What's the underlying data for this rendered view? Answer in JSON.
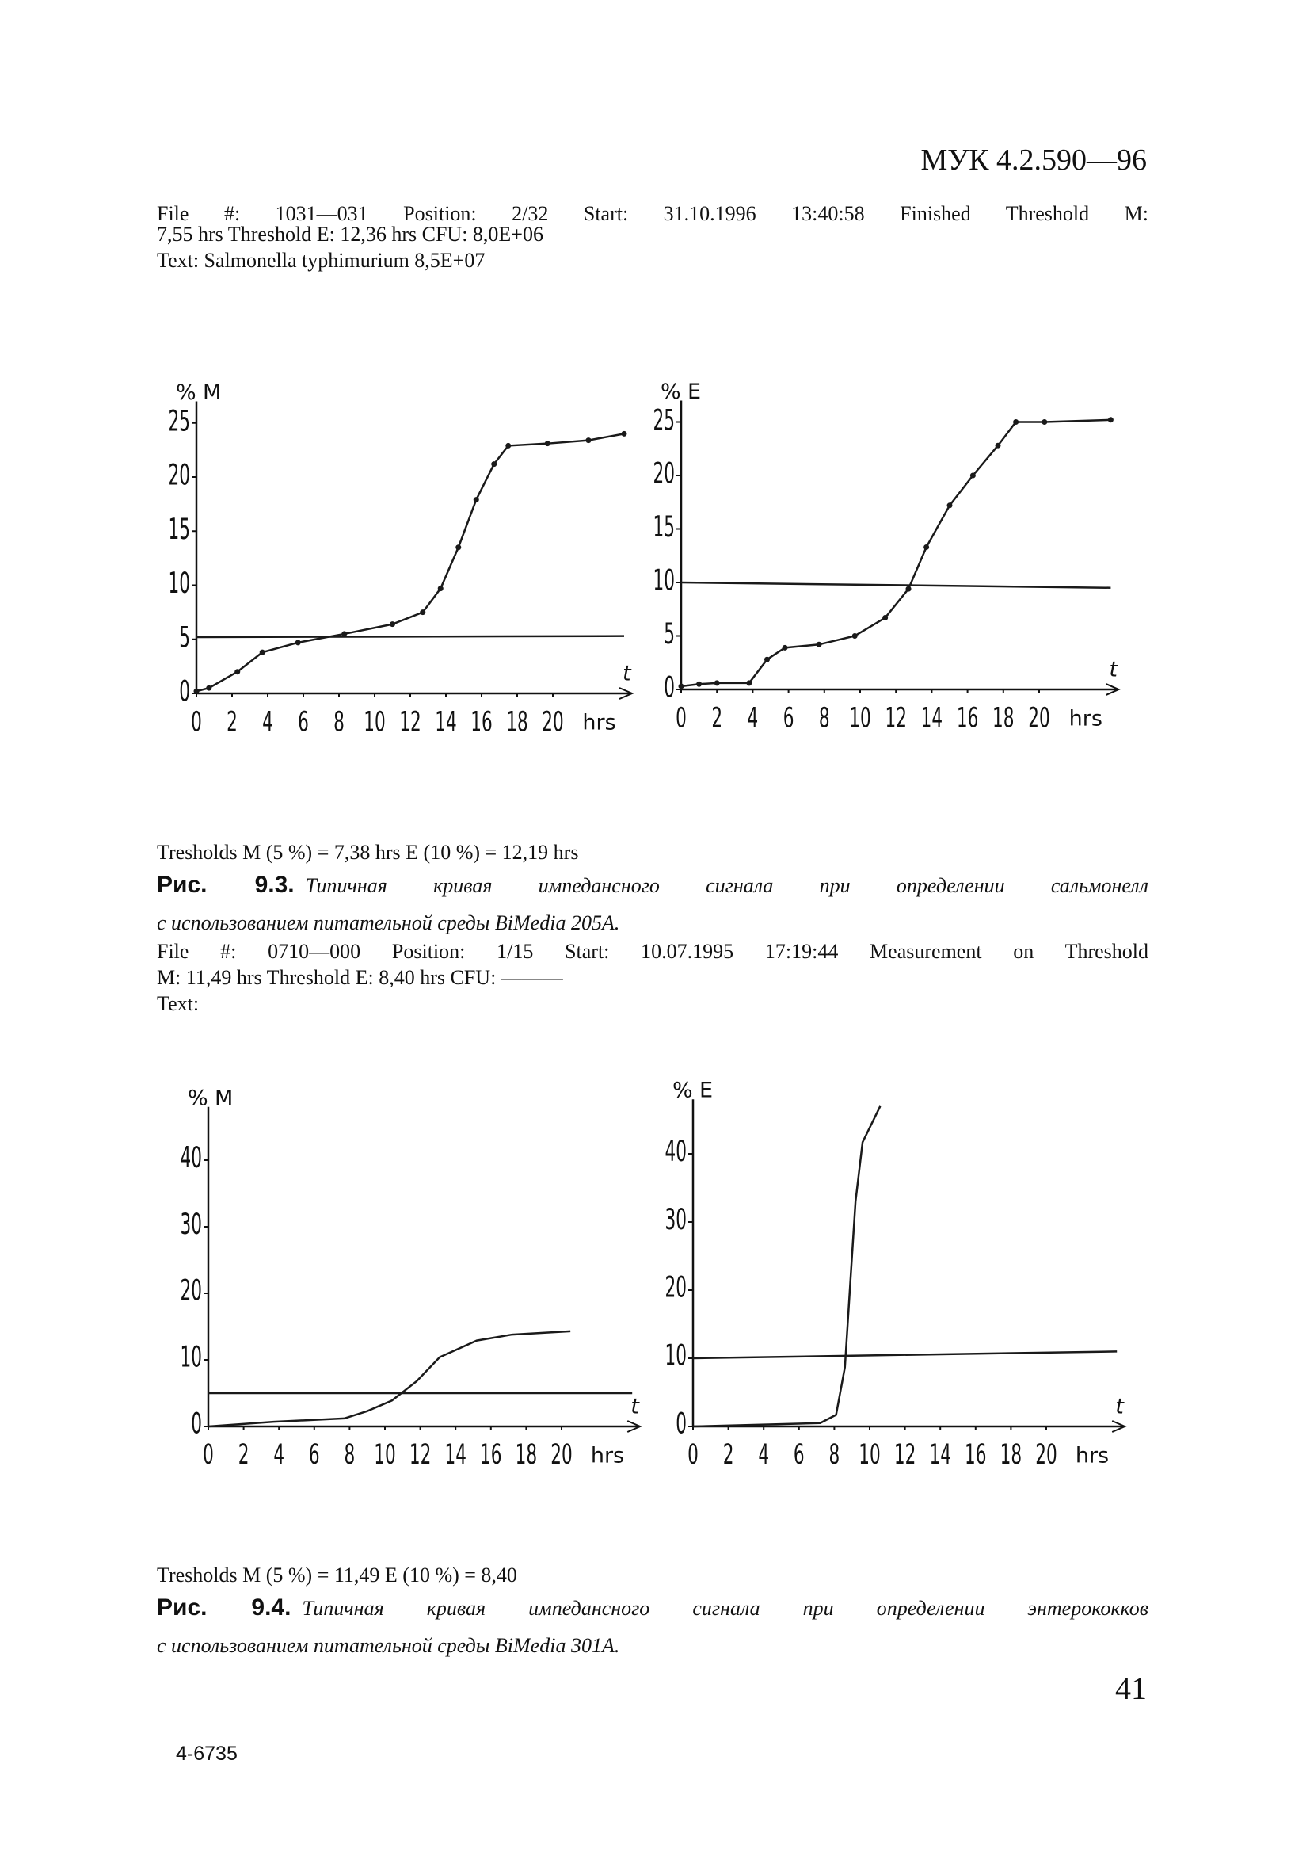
{
  "header": {
    "code": "МУК 4.2.590—96"
  },
  "fig1": {
    "file_lines": [
      "File #: 1031—031 Position: 2/32 Start: 31.10.1996 13:40:58 Finished Threshold M:",
      "7,55 hrs Threshold E: 12,36 hrs CFU: 8,0E+06",
      "Text: Salmonella typhimurium 8,5E+07"
    ],
    "thresholds": "Tresholds M (5 %) = 7,38 hrs E (10 %) = 12,19 hrs",
    "caption_label": "Рис. 9.3.",
    "caption_lines": [
      "Типичная кривая импедансного сигнала при определении сальмонелл",
      "с использованием питательной среды BiMedia 205A."
    ]
  },
  "fig2": {
    "file_lines": [
      "File #: 0710—000 Position: 1/15 Start: 10.07.1995 17:19:44 Measurement on Threshold",
      "M: 11,49 hrs Threshold E: 8,40 hrs CFU: ———",
      "Text:"
    ],
    "thresholds": "Tresholds M (5 %) = 11,49 E (10 %) = 8,40",
    "caption_label": "Рис. 9.4.",
    "caption_lines": [
      "Типичная кривая импедансного сигнала при определении энтерококков",
      "с использованием питательной среды BiMedia 301A."
    ]
  },
  "footer": {
    "page_number": "41",
    "print_code": "4-6735"
  },
  "chart_data": [
    {
      "type": "line",
      "y_label": "%",
      "axis_name": "M",
      "x_label": "hrs",
      "x_arrow_label": "t",
      "xlim": [
        0,
        24
      ],
      "xticks": [
        0,
        2,
        4,
        6,
        8,
        10,
        12,
        14,
        16,
        18,
        20
      ],
      "ylim": [
        0,
        27
      ],
      "yticks": [
        0,
        5,
        10,
        15,
        20,
        25
      ],
      "markers": true,
      "series": [
        {
          "color": "#1a1a1a",
          "x": [
            0,
            0.7,
            2.3,
            3.7,
            5.7,
            8.3,
            11,
            12.7,
            13.7,
            14.7,
            15.7,
            16.7,
            17.5,
            19.7,
            22,
            24
          ],
          "values": [
            0.2,
            0.5,
            2,
            3.8,
            4.7,
            5.5,
            6.4,
            7.5,
            9.7,
            13.5,
            17.9,
            21.2,
            22.9,
            23.1,
            23.4,
            24
          ]
        },
        {
          "color": "#1a1a1a",
          "x": [
            0,
            24
          ],
          "values": [
            5.2,
            5.3
          ]
        }
      ]
    },
    {
      "type": "line",
      "y_label": "%",
      "axis_name": "E",
      "x_label": "hrs",
      "x_arrow_label": "t",
      "xlim": [
        0,
        24
      ],
      "xticks": [
        0,
        2,
        4,
        6,
        8,
        10,
        12,
        14,
        16,
        18,
        20
      ],
      "ylim": [
        0,
        27
      ],
      "yticks": [
        0,
        5,
        10,
        15,
        20,
        25
      ],
      "markers": true,
      "series": [
        {
          "color": "#1a1a1a",
          "x": [
            0,
            1,
            2,
            3.8,
            4.8,
            5.8,
            7.7,
            9.7,
            11.4,
            12.7,
            13.7,
            15,
            16.3,
            17.7,
            18.7,
            20.3,
            24
          ],
          "values": [
            0.3,
            0.5,
            0.6,
            0.6,
            2.8,
            3.9,
            4.2,
            5,
            6.7,
            9.4,
            13.3,
            17.2,
            20,
            22.8,
            25,
            25,
            25.2
          ]
        },
        {
          "color": "#1a1a1a",
          "x": [
            0,
            24
          ],
          "values": [
            10,
            9.5
          ]
        }
      ]
    },
    {
      "type": "line",
      "y_label": "%",
      "axis_name": "M",
      "x_label": "hrs",
      "x_arrow_label": "t",
      "xlim": [
        0,
        24
      ],
      "xticks": [
        0,
        2,
        4,
        6,
        8,
        10,
        12,
        14,
        16,
        18,
        20
      ],
      "ylim": [
        0,
        48
      ],
      "yticks": [
        0,
        10,
        20,
        30,
        40
      ],
      "markers": false,
      "series": [
        {
          "color": "#1a1a1a",
          "x": [
            0,
            3.7,
            7.7,
            9,
            10.4,
            11.8,
            13.1,
            15.2,
            17.2,
            20.5
          ],
          "values": [
            0,
            0.7,
            1.2,
            2.3,
            3.9,
            6.8,
            10.4,
            12.9,
            13.8,
            14.3
          ]
        },
        {
          "color": "#1a1a1a",
          "x": [
            0,
            24
          ],
          "values": [
            5,
            5
          ]
        }
      ]
    },
    {
      "type": "line",
      "y_label": "%",
      "axis_name": "E",
      "x_label": "hrs",
      "x_arrow_label": "t",
      "xlim": [
        0,
        24
      ],
      "xticks": [
        0,
        2,
        4,
        6,
        8,
        10,
        12,
        14,
        16,
        18,
        20
      ],
      "ylim": [
        0,
        48
      ],
      "yticks": [
        0,
        10,
        20,
        30,
        40
      ],
      "markers": false,
      "series": [
        {
          "color": "#1a1a1a",
          "x": [
            0,
            4.5,
            7.2,
            8.1,
            8.6,
            8.9,
            9.2,
            9.6,
            10.6
          ],
          "values": [
            0,
            0.3,
            0.5,
            1.7,
            8.7,
            20.9,
            33,
            41.7,
            47
          ]
        },
        {
          "color": "#1a1a1a",
          "x": [
            0,
            24
          ],
          "values": [
            10,
            11
          ]
        }
      ]
    }
  ]
}
